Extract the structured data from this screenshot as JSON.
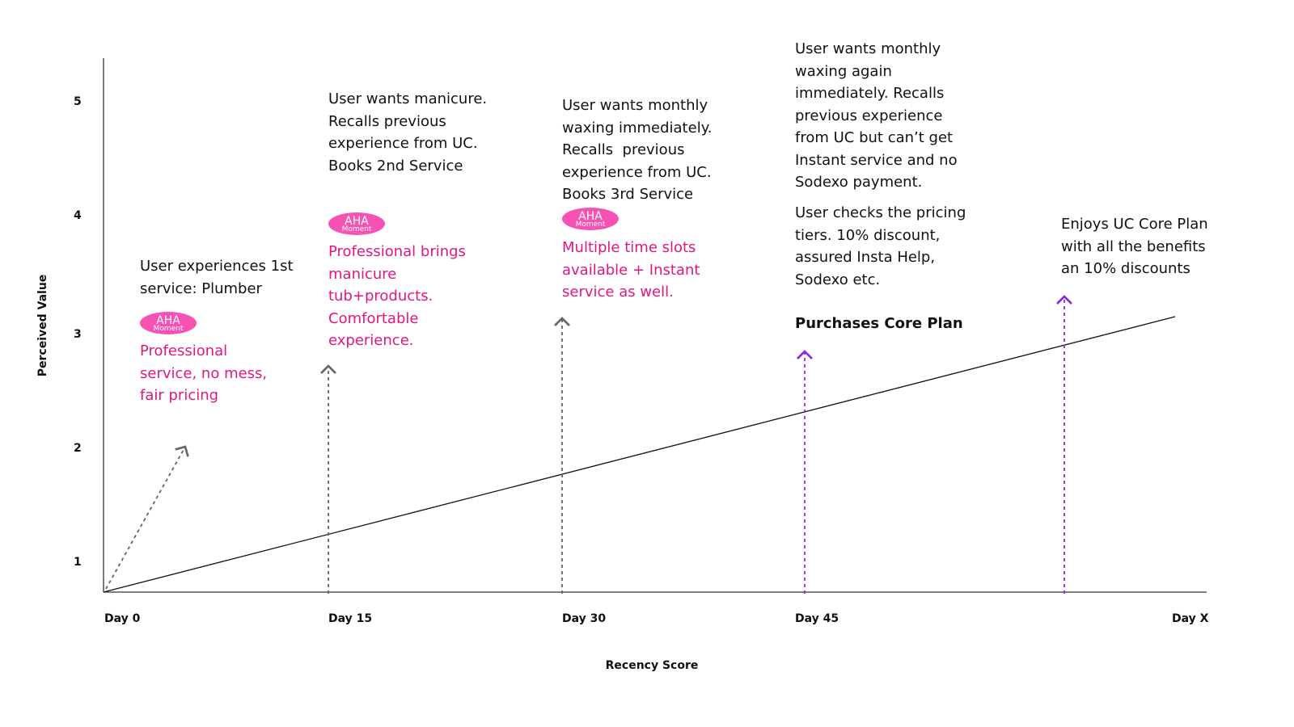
{
  "y_axis": {
    "label": "Perceived Value",
    "ticks": [
      "5",
      "4",
      "3",
      "2",
      "1"
    ]
  },
  "x_axis": {
    "label": "Recency Score",
    "ticks": [
      "Day 0",
      "Day 15",
      "Day 30",
      "Day 45",
      "Day X"
    ]
  },
  "badge": {
    "title": "AHA",
    "subtitle": "Moment"
  },
  "events": [
    {
      "text": "User experiences 1st service: Plumber",
      "highlight": "Professional service, no mess, fair pricing"
    },
    {
      "text": "User wants manicure. Recalls previous experience from UC. Books 2nd Service",
      "highlight": "Professional brings manicure tub+products. Comfortable experience."
    },
    {
      "text": "User wants monthly waxing immediately. Recalls  previous experience from UC. Books 3rd Service",
      "highlight": "Multiple time slots available + Instant service as well."
    },
    {
      "text": "User wants monthly waxing again immediately. Recalls previous experience from UC but can’t get Instant service and no Sodexo payment.",
      "note": "User checks the pricing tiers. 10% discount, assured Insta Help, Sodexo etc.",
      "action": "Purchases Core Plan"
    },
    {
      "text": "Enjoys UC Core Plan with all the benefits an 10% discounts"
    }
  ]
}
